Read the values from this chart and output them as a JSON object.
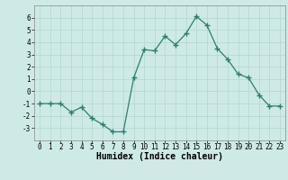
{
  "x": [
    0,
    1,
    2,
    3,
    4,
    5,
    6,
    7,
    8,
    9,
    10,
    11,
    12,
    13,
    14,
    15,
    16,
    17,
    18,
    19,
    20,
    21,
    22,
    23
  ],
  "y": [
    -1,
    -1,
    -1,
    -1.7,
    -1.3,
    -2.2,
    -2.7,
    -3.3,
    -3.3,
    1.1,
    3.4,
    3.3,
    4.5,
    3.8,
    4.7,
    6.1,
    5.4,
    3.5,
    2.6,
    1.4,
    1.1,
    -0.3,
    -1.2,
    -1.2
  ],
  "line_color": "#2e7d6e",
  "marker": "+",
  "marker_size": 4,
  "bg_color": "#ceeae6",
  "grid_color": "#b8d8d4",
  "xlabel": "Humidex (Indice chaleur)",
  "xlim": [
    -0.5,
    23.5
  ],
  "ylim": [
    -4,
    7
  ],
  "yticks": [
    -3,
    -2,
    -1,
    0,
    1,
    2,
    3,
    4,
    5,
    6
  ],
  "xticks": [
    0,
    1,
    2,
    3,
    4,
    5,
    6,
    7,
    8,
    9,
    10,
    11,
    12,
    13,
    14,
    15,
    16,
    17,
    18,
    19,
    20,
    21,
    22,
    23
  ],
  "tick_fontsize": 5.5,
  "xlabel_fontsize": 7,
  "line_width": 0.9
}
